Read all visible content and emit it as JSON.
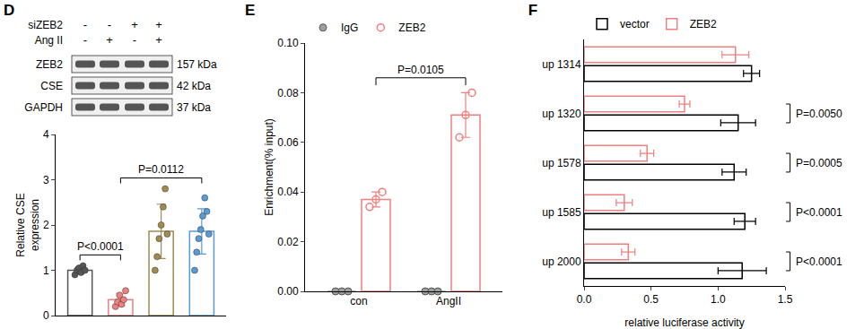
{
  "blot": {
    "panel": "D",
    "conditions": [
      {
        "label": "siZEB2",
        "signs": [
          "-",
          "-",
          "+",
          "+"
        ]
      },
      {
        "label": "Ang II",
        "signs": [
          "-",
          "+",
          "-",
          "+"
        ]
      }
    ],
    "bands": [
      {
        "label": "ZEB2",
        "size": "157 kDa"
      },
      {
        "label": "CSE",
        "size": "42 kDa"
      },
      {
        "label": "GAPDH",
        "size": "37 kDa"
      }
    ]
  },
  "chart_data": [
    {
      "type": "bar",
      "categories": [
        null,
        null,
        null,
        null
      ],
      "y_label": [
        "Relative CSE",
        "expression"
      ],
      "values": [
        1.0,
        0.35,
        1.86,
        1.86
      ],
      "errors": [
        0.07,
        0.13,
        0.6,
        0.5
      ],
      "points": [
        [
          0.9,
          1.0,
          1.05,
          0.95,
          1.1,
          1.0
        ],
        [
          0.2,
          0.3,
          0.45,
          0.25,
          0.35,
          0.55
        ],
        [
          1.0,
          1.3,
          1.7,
          2.0,
          2.4,
          2.8,
          1.8
        ],
        [
          1.0,
          1.4,
          1.7,
          1.9,
          2.2,
          2.6,
          2.3,
          1.8
        ]
      ],
      "colors": [
        "#555555",
        "#f08080",
        "#a08c50",
        "#5b9bd5"
      ],
      "ylim": [
        0,
        4
      ],
      "yticks": [
        0,
        1,
        2,
        3,
        4
      ],
      "tick_labels": "y",
      "annotations": [
        {
          "text": "P<0.0001",
          "from": 0,
          "to": 1
        },
        {
          "text": "P=0.0112",
          "from": 1,
          "to": 3
        }
      ]
    },
    {
      "type": "bar",
      "title": "E",
      "categories": [
        "con",
        "AngII"
      ],
      "y_label": "Enrichment(% input)",
      "series": [
        {
          "name": "IgG",
          "color": "#9e9e9e",
          "marker": "circle",
          "values": [
            0,
            0
          ],
          "errors": [
            0,
            0
          ],
          "points": [
            [
              0,
              0,
              0
            ],
            [
              0,
              0,
              0
            ]
          ]
        },
        {
          "name": "ZEB2",
          "color": "#f08080",
          "marker": "circle-open",
          "values": [
            0.037,
            0.071
          ],
          "errors": [
            0.003,
            0.009
          ],
          "points": [
            [
              0.034,
              0.037,
              0.04
            ],
            [
              0.062,
              0.071,
              0.08
            ]
          ]
        }
      ],
      "ylim": [
        0,
        0.1
      ],
      "yticks": [
        {
          "value": 0,
          "label": "0.00"
        },
        {
          "value": 0.02,
          "label": "0.02"
        },
        {
          "value": 0.04,
          "label": "0.04"
        },
        {
          "value": 0.06,
          "label": "0.06"
        },
        {
          "value": 0.08,
          "label": "0.08"
        },
        {
          "value": 0.1,
          "label": "0.10"
        }
      ],
      "legend": "top left",
      "annotations": [
        {
          "text": "P=0.0105",
          "series": "ZEB2",
          "from": 0,
          "to": 1
        }
      ]
    },
    {
      "type": "bar",
      "title": "F",
      "orientation": "horizontal",
      "categories": [
        "up 1314",
        "up 1320",
        "up 1578",
        "up 1585",
        "up 2000"
      ],
      "x_label": "relative luciferase activity",
      "series": [
        {
          "name": "vector",
          "color": "#000000",
          "values": [
            1.25,
            1.15,
            1.12,
            1.2,
            1.18
          ],
          "errors": [
            0.06,
            0.13,
            0.09,
            0.08,
            0.18
          ]
        },
        {
          "name": "ZEB2",
          "color": "#f08080",
          "values": [
            1.13,
            0.75,
            0.47,
            0.3,
            0.33
          ],
          "errors": [
            0.1,
            0.04,
            0.05,
            0.06,
            0.05
          ]
        }
      ],
      "xlim": [
        0,
        1.5
      ],
      "xticks": [
        {
          "value": 0,
          "label": "0.0"
        },
        {
          "value": 0.5,
          "label": "0.5"
        },
        {
          "value": 1,
          "label": "1.0"
        },
        {
          "value": 1.5,
          "label": "1.5"
        }
      ],
      "legend": "top",
      "annotations": [
        {
          "text": "P=0.0050",
          "category": "up 1320"
        },
        {
          "text": "P=0.0005",
          "category": "up 1578"
        },
        {
          "text": "P<0.0001",
          "category": "up 1585"
        },
        {
          "text": "P<0.0001",
          "category": "up 2000"
        }
      ]
    }
  ]
}
